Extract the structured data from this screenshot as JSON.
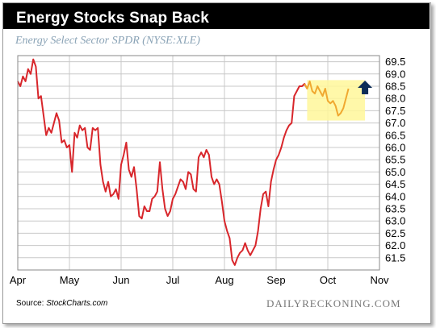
{
  "header": {
    "title": "Energy Stocks Snap Back",
    "subtitle": "Energy Select Sector SPDR (NYSE:XLE)"
  },
  "footer": {
    "source_prefix": "Source: ",
    "source_name": "StockCharts.com",
    "brand": "DAILYRECKONING.COM"
  },
  "colors": {
    "line": "#d8262b",
    "highlight_fill": "#fff79a",
    "highlight_line": "#f0a830",
    "arrow": "#0d2d57",
    "grid": "#c8c8c8"
  },
  "chart_data": {
    "type": "line",
    "title": "Energy Stocks Snap Back",
    "subtitle": "Energy Select Sector SPDR (NYSE:XLE)",
    "x_axis": {
      "ticks": [
        "Apr",
        "May",
        "Jun",
        "Jul",
        "Aug",
        "Sep",
        "Oct",
        "Nov"
      ],
      "range_months": [
        0,
        7
      ]
    },
    "y_axis": {
      "side": "right",
      "ticks": [
        61.5,
        62.0,
        62.5,
        63.0,
        63.5,
        64.0,
        64.5,
        65.0,
        65.5,
        66.0,
        66.5,
        67.0,
        67.5,
        68.0,
        68.5,
        69.0,
        69.5
      ],
      "tick_labels": [
        "61.5",
        "62.0",
        "62.5",
        "63.0",
        "63.5",
        "64.0",
        "64.5",
        "65.0",
        "65.5",
        "66.0",
        "66.5",
        "67.0",
        "67.5",
        "68.0",
        "68.5",
        "69.0",
        "69.5"
      ],
      "range": [
        61.0,
        69.75
      ]
    },
    "grid": true,
    "highlight": {
      "x_range": [
        5.6,
        6.72
      ],
      "y_range": [
        67.1,
        68.75
      ]
    },
    "arrow": {
      "x": 6.72,
      "y": 68.4,
      "direction": "up"
    },
    "series": [
      {
        "values": [
          [
            0.0,
            68.7
          ],
          [
            0.05,
            68.5
          ],
          [
            0.1,
            68.9
          ],
          [
            0.15,
            68.7
          ],
          [
            0.2,
            69.2
          ],
          [
            0.25,
            69.0
          ],
          [
            0.3,
            69.6
          ],
          [
            0.35,
            69.3
          ],
          [
            0.4,
            68.0
          ],
          [
            0.45,
            68.1
          ],
          [
            0.5,
            67.3
          ],
          [
            0.55,
            66.5
          ],
          [
            0.6,
            66.8
          ],
          [
            0.65,
            66.6
          ],
          [
            0.7,
            67.0
          ],
          [
            0.75,
            67.4
          ],
          [
            0.8,
            67.1
          ],
          [
            0.85,
            66.2
          ],
          [
            0.9,
            66.3
          ],
          [
            0.95,
            66.0
          ],
          [
            1.0,
            66.1
          ],
          [
            1.05,
            65.0
          ],
          [
            1.1,
            66.6
          ],
          [
            1.15,
            66.4
          ],
          [
            1.2,
            66.9
          ],
          [
            1.25,
            66.7
          ],
          [
            1.3,
            66.8
          ],
          [
            1.35,
            66.0
          ],
          [
            1.4,
            65.9
          ],
          [
            1.45,
            66.8
          ],
          [
            1.5,
            66.7
          ],
          [
            1.55,
            66.8
          ],
          [
            1.6,
            65.3
          ],
          [
            1.65,
            64.6
          ],
          [
            1.7,
            64.2
          ],
          [
            1.75,
            64.6
          ],
          [
            1.8,
            64.0
          ],
          [
            1.85,
            64.1
          ],
          [
            1.9,
            64.3
          ],
          [
            1.95,
            63.9
          ],
          [
            2.0,
            65.3
          ],
          [
            2.05,
            65.7
          ],
          [
            2.1,
            66.2
          ],
          [
            2.15,
            65.1
          ],
          [
            2.2,
            64.8
          ],
          [
            2.25,
            65.2
          ],
          [
            2.3,
            64.3
          ],
          [
            2.35,
            63.2
          ],
          [
            2.4,
            63.1
          ],
          [
            2.45,
            63.6
          ],
          [
            2.5,
            63.4
          ],
          [
            2.55,
            63.4
          ],
          [
            2.6,
            63.9
          ],
          [
            2.65,
            64.0
          ],
          [
            2.7,
            64.2
          ],
          [
            2.75,
            65.4
          ],
          [
            2.8,
            64.3
          ],
          [
            2.85,
            63.5
          ],
          [
            2.9,
            63.2
          ],
          [
            2.95,
            63.4
          ],
          [
            3.0,
            63.9
          ],
          [
            3.05,
            64.1
          ],
          [
            3.1,
            64.4
          ],
          [
            3.15,
            64.7
          ],
          [
            3.2,
            64.6
          ],
          [
            3.25,
            64.3
          ],
          [
            3.3,
            65.0
          ],
          [
            3.35,
            64.9
          ],
          [
            3.4,
            64.3
          ],
          [
            3.45,
            64.2
          ],
          [
            3.5,
            65.6
          ],
          [
            3.55,
            65.8
          ],
          [
            3.6,
            65.6
          ],
          [
            3.65,
            65.9
          ],
          [
            3.7,
            65.7
          ],
          [
            3.75,
            64.8
          ],
          [
            3.8,
            64.5
          ],
          [
            3.85,
            64.7
          ],
          [
            3.9,
            64.5
          ],
          [
            3.95,
            63.8
          ],
          [
            4.0,
            63.0
          ],
          [
            4.05,
            62.6
          ],
          [
            4.1,
            62.3
          ],
          [
            4.15,
            61.4
          ],
          [
            4.2,
            61.2
          ],
          [
            4.25,
            61.5
          ],
          [
            4.3,
            61.7
          ],
          [
            4.35,
            61.8
          ],
          [
            4.4,
            62.1
          ],
          [
            4.45,
            61.8
          ],
          [
            4.5,
            61.6
          ],
          [
            4.55,
            61.8
          ],
          [
            4.6,
            62.0
          ],
          [
            4.65,
            62.6
          ],
          [
            4.7,
            63.5
          ],
          [
            4.75,
            64.1
          ],
          [
            4.8,
            64.2
          ],
          [
            4.85,
            63.6
          ],
          [
            4.9,
            64.6
          ],
          [
            4.95,
            65.1
          ],
          [
            5.0,
            65.5
          ],
          [
            5.05,
            65.7
          ],
          [
            5.1,
            66.0
          ],
          [
            5.15,
            66.4
          ],
          [
            5.2,
            66.7
          ],
          [
            5.25,
            66.9
          ],
          [
            5.3,
            67.0
          ],
          [
            5.35,
            68.1
          ],
          [
            5.4,
            68.3
          ],
          [
            5.45,
            68.5
          ],
          [
            5.5,
            68.5
          ],
          [
            5.55,
            68.6
          ],
          [
            5.6,
            68.4
          ],
          [
            5.65,
            68.7
          ],
          [
            5.7,
            68.3
          ],
          [
            5.75,
            68.2
          ],
          [
            5.8,
            68.5
          ],
          [
            5.85,
            68.3
          ],
          [
            5.9,
            68.1
          ],
          [
            5.95,
            68.4
          ],
          [
            6.0,
            67.9
          ],
          [
            6.05,
            67.8
          ],
          [
            6.1,
            67.9
          ],
          [
            6.15,
            67.7
          ],
          [
            6.2,
            67.3
          ],
          [
            6.25,
            67.4
          ],
          [
            6.3,
            67.6
          ],
          [
            6.35,
            68.0
          ],
          [
            6.4,
            68.4
          ]
        ]
      }
    ]
  }
}
